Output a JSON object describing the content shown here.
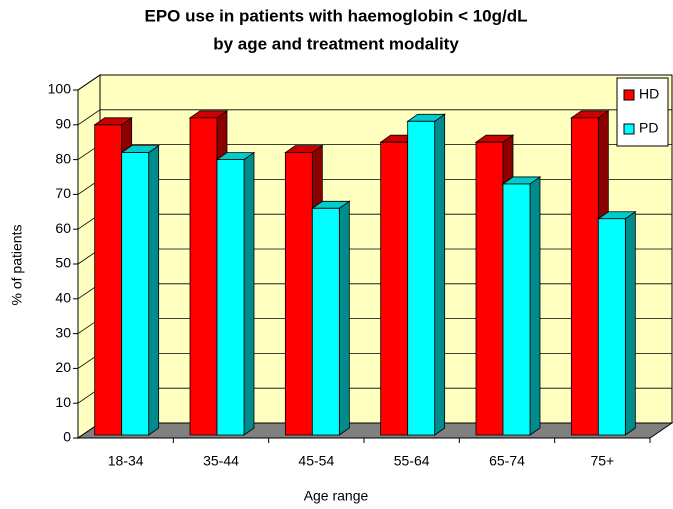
{
  "chart_data": {
    "type": "bar3d",
    "title_lines": [
      "EPO use in patients with haemoglobin < 10g/dL",
      "by age and treatment modality"
    ],
    "x_label": "Age range",
    "y_label": "% of patients",
    "categories": [
      "18-34",
      "35-44",
      "45-54",
      "55-64",
      "65-74",
      "75+"
    ],
    "series": [
      {
        "name": "HD",
        "color": "#ff0000",
        "values": [
          90,
          92,
          82,
          85,
          85,
          92
        ]
      },
      {
        "name": "PD",
        "color": "#00ffff",
        "values": [
          82,
          80,
          66,
          91,
          73,
          63
        ]
      }
    ],
    "ylim": [
      0,
      100
    ],
    "yticks": [
      0,
      10,
      20,
      30,
      40,
      50,
      60,
      70,
      80,
      90,
      100
    ],
    "grid": true,
    "legend": "top-right"
  }
}
